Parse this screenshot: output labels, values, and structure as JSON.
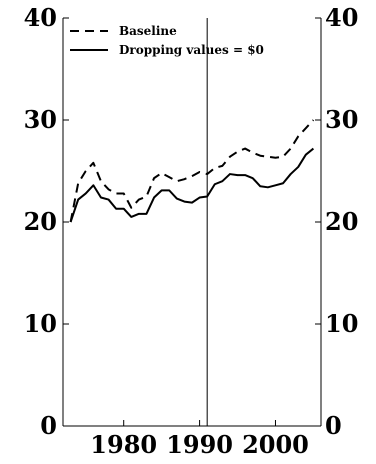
{
  "chart_data": {
    "type": "line",
    "title": "",
    "xlabel": "",
    "ylabel": "",
    "xlim": [
      1972,
      2006
    ],
    "ylim": [
      0,
      40
    ],
    "x_ticks": [
      1980,
      1990,
      2000
    ],
    "y_ticks": [
      0,
      10,
      20,
      30,
      40
    ],
    "x_tick_labels": [
      "1980",
      "1990",
      "2000"
    ],
    "y_tick_labels": [
      "0",
      "10",
      "20",
      "30",
      "40"
    ],
    "y_axis_right_duplicate": true,
    "grid": false,
    "legend_position": "top-left",
    "reference_line_x": 1991,
    "x": [
      1973,
      1974,
      1975,
      1976,
      1977,
      1978,
      1979,
      1980,
      1981,
      1982,
      1983,
      1984,
      1985,
      1986,
      1987,
      1988,
      1989,
      1990,
      1991,
      1992,
      1993,
      1994,
      1995,
      1996,
      1997,
      1998,
      1999,
      2000,
      2001,
      2002,
      2003,
      2004,
      2005
    ],
    "series": [
      {
        "name": "Baseline",
        "style": "dashed",
        "color": "#000000",
        "values": [
          20.0,
          23.8,
          25.0,
          25.8,
          24.0,
          23.2,
          22.8,
          22.8,
          21.4,
          22.2,
          22.5,
          24.3,
          24.8,
          24.4,
          24.0,
          24.2,
          24.5,
          24.9,
          24.7,
          25.3,
          25.5,
          26.4,
          26.9,
          27.2,
          26.8,
          26.5,
          26.4,
          26.3,
          26.4,
          27.2,
          28.4,
          29.2,
          30.0
        ]
      },
      {
        "name": "Dropping values = $0",
        "style": "solid",
        "color": "#000000",
        "values": [
          20.0,
          22.2,
          22.8,
          23.6,
          22.4,
          22.2,
          21.3,
          21.3,
          20.5,
          20.8,
          20.8,
          22.4,
          23.1,
          23.1,
          22.3,
          22.0,
          21.9,
          22.4,
          22.5,
          23.7,
          24.0,
          24.7,
          24.6,
          24.6,
          24.3,
          23.5,
          23.4,
          23.6,
          23.8,
          24.7,
          25.4,
          26.6,
          27.2
        ]
      }
    ]
  }
}
